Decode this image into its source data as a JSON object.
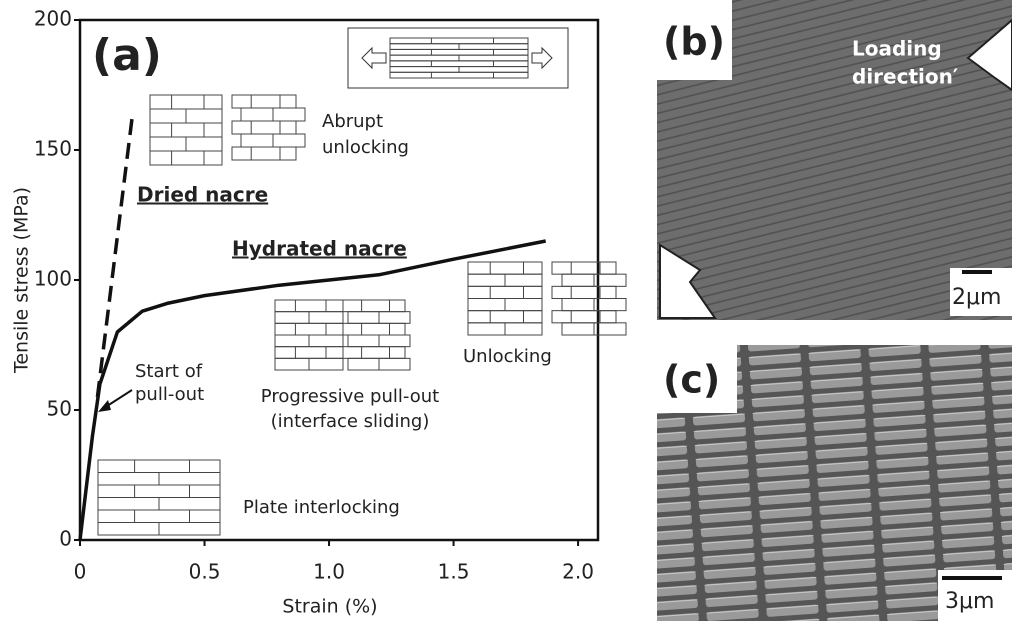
{
  "chart_data": {
    "type": "line",
    "title": "(a)",
    "xlabel": "Strain (%)",
    "ylabel": "Tensile stress (MPa)",
    "xlim": [
      0,
      2.08
    ],
    "ylim": [
      0,
      200
    ],
    "xticks": [
      0,
      0.5,
      {
        "value": 1,
        "label": "1.0"
      },
      1.5,
      {
        "value": 2,
        "label": "2.0"
      }
    ],
    "yticks": [
      0,
      50,
      100,
      150,
      200
    ],
    "series": [
      {
        "name": "Dried nacre",
        "color": "#111111",
        "dashed": true,
        "x": [
          0.07,
          0.21
        ],
        "values": [
          55,
          163
        ]
      },
      {
        "name": "Hydrated nacre",
        "color": "#111111",
        "dashed": false,
        "x": [
          0,
          0.05,
          0.08,
          0.15,
          0.25,
          0.35,
          0.5,
          0.8,
          1.2,
          1.5,
          1.87
        ],
        "values": [
          0,
          40,
          60,
          80,
          88,
          91,
          94,
          98,
          102,
          108,
          115
        ]
      }
    ],
    "annotations": {
      "abrupt": [
        "Abrupt",
        "unlocking"
      ],
      "start": [
        "Start of",
        "pull-out"
      ],
      "progressive": [
        "Progressive pull-out",
        "(interface sliding)"
      ],
      "unlocking": "Unlocking",
      "interlocking": "Plate interlocking"
    }
  },
  "panels": {
    "b": {
      "label": "(b)",
      "direction": [
        "Loading",
        "direction′"
      ],
      "scale": "2μm"
    },
    "c": {
      "label": "(c)",
      "scale": "3μm"
    }
  }
}
